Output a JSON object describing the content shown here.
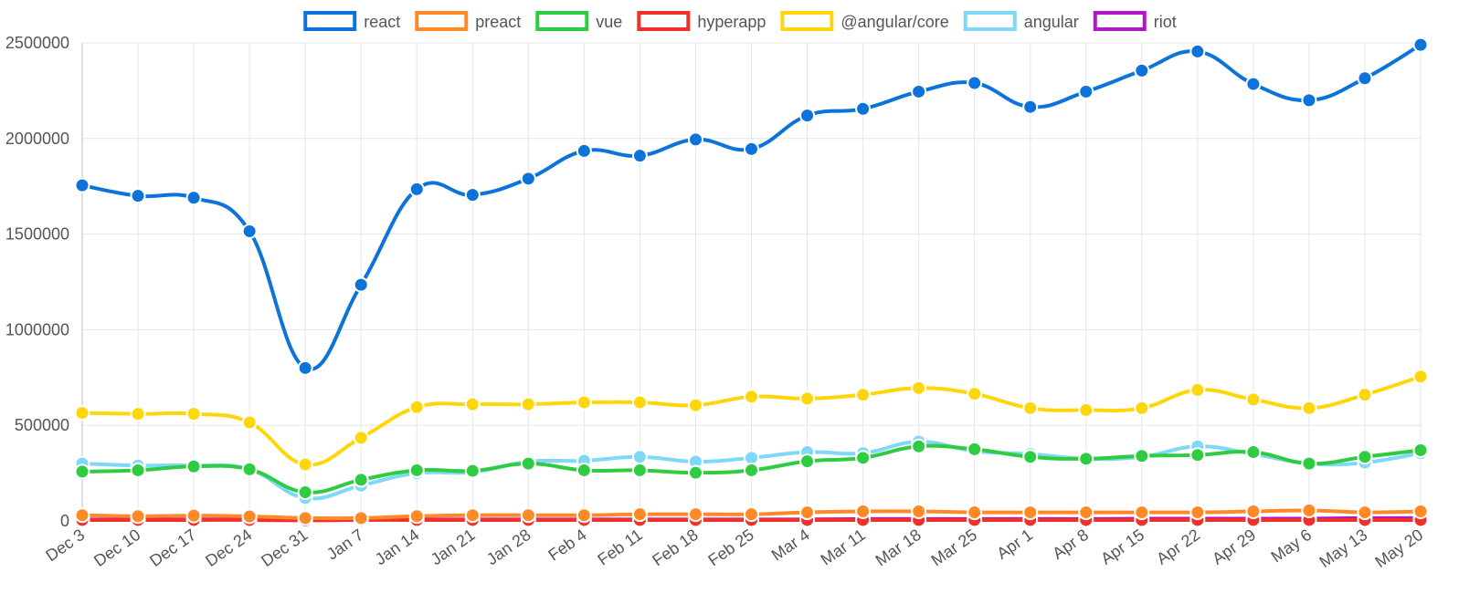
{
  "chart_data": {
    "type": "line",
    "title": "",
    "xlabel": "",
    "ylabel": "",
    "x": [
      "Dec 3",
      "Dec 10",
      "Dec 17",
      "Dec 24",
      "Dec 31",
      "Jan 7",
      "Jan 14",
      "Jan 21",
      "Jan 28",
      "Feb 4",
      "Feb 11",
      "Feb 18",
      "Feb 25",
      "Mar 4",
      "Mar 11",
      "Mar 18",
      "Mar 25",
      "Apr 1",
      "Apr 8",
      "Apr 15",
      "Apr 22",
      "Apr 29",
      "May 6",
      "May 13",
      "May 20"
    ],
    "ylim": [
      0,
      2500000
    ],
    "yticks": [
      "0",
      "500000",
      "1000000",
      "1500000",
      "2000000",
      "2500000"
    ],
    "grid": true,
    "legend_position": "top-center",
    "series": [
      {
        "name": "react",
        "color": "#0b73d9",
        "values": [
          1755000,
          1700000,
          1690000,
          1515000,
          800000,
          1235000,
          1735000,
          1705000,
          1790000,
          1935000,
          1910000,
          1995000,
          1945000,
          2120000,
          2155000,
          2245000,
          2290000,
          2165000,
          2245000,
          2355000,
          2455000,
          2285000,
          2200000,
          2315000,
          2490000
        ]
      },
      {
        "name": "preact",
        "color": "#ff8a25",
        "values": [
          30000,
          25000,
          28000,
          24000,
          15000,
          15000,
          25000,
          30000,
          30000,
          30000,
          35000,
          35000,
          35000,
          45000,
          50000,
          50000,
          45000,
          45000,
          45000,
          45000,
          45000,
          50000,
          55000,
          45000,
          50000
        ]
      },
      {
        "name": "vue",
        "color": "#2ecc40",
        "values": [
          258000,
          265000,
          285000,
          270000,
          150000,
          215000,
          265000,
          262000,
          300000,
          265000,
          265000,
          252000,
          265000,
          312000,
          330000,
          390000,
          375000,
          335000,
          325000,
          340000,
          345000,
          360000,
          300000,
          335000,
          370000
        ]
      },
      {
        "name": "hyperapp",
        "color": "#f0312b",
        "values": [
          5000,
          5000,
          5000,
          5000,
          3000,
          5000,
          5000,
          5000,
          5000,
          5000,
          5000,
          5000,
          5000,
          5000,
          5000,
          5000,
          5000,
          5000,
          5000,
          5000,
          5000,
          5000,
          5000,
          5000,
          5000
        ]
      },
      {
        "name": "@angular/core",
        "color": "#ffd60a",
        "values": [
          565000,
          560000,
          560000,
          515000,
          295000,
          435000,
          595000,
          610000,
          610000,
          620000,
          620000,
          605000,
          650000,
          640000,
          660000,
          695000,
          665000,
          590000,
          580000,
          590000,
          685000,
          635000,
          590000,
          660000,
          755000
        ]
      },
      {
        "name": "angular",
        "color": "#7fd8f8",
        "values": [
          300000,
          290000,
          290000,
          270000,
          120000,
          185000,
          250000,
          255000,
          310000,
          315000,
          335000,
          310000,
          330000,
          360000,
          355000,
          415000,
          365000,
          350000,
          325000,
          335000,
          390000,
          350000,
          300000,
          305000,
          355000
        ]
      },
      {
        "name": "riot",
        "color": "#b316c9",
        "values": [
          8000,
          8000,
          8000,
          8000,
          6000,
          8000,
          8000,
          8000,
          8000,
          8000,
          8000,
          8000,
          8000,
          8000,
          10000,
          10000,
          10000,
          10000,
          10000,
          12000,
          12000,
          12000,
          12000,
          15000,
          15000
        ]
      }
    ]
  }
}
